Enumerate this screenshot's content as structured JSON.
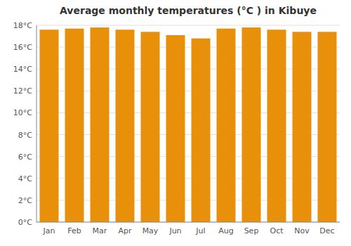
{
  "chart_data": {
    "type": "bar",
    "title": "Average monthly temperatures (°C ) in Kibuye",
    "categories": [
      "Jan",
      "Feb",
      "Mar",
      "Apr",
      "May",
      "Jun",
      "Jul",
      "Aug",
      "Sep",
      "Oct",
      "Nov",
      "Dec"
    ],
    "values": [
      17.6,
      17.7,
      17.8,
      17.6,
      17.4,
      17.1,
      16.8,
      17.7,
      17.8,
      17.6,
      17.4,
      17.4
    ],
    "color": "#E8900A",
    "ylim": [
      0,
      18
    ],
    "yticks": [
      {
        "value": 0,
        "label": "0°C"
      },
      {
        "value": 2,
        "label": "2°C"
      },
      {
        "value": 4,
        "label": "4°C"
      },
      {
        "value": 6,
        "label": "6°C"
      },
      {
        "value": 8,
        "label": "8°C"
      },
      {
        "value": 10,
        "label": "10°C"
      },
      {
        "value": 12,
        "label": "12°C"
      },
      {
        "value": 14,
        "label": "14°C"
      },
      {
        "value": 16,
        "label": "16°C"
      },
      {
        "value": 18,
        "label": "18°C"
      }
    ],
    "grid": true
  }
}
